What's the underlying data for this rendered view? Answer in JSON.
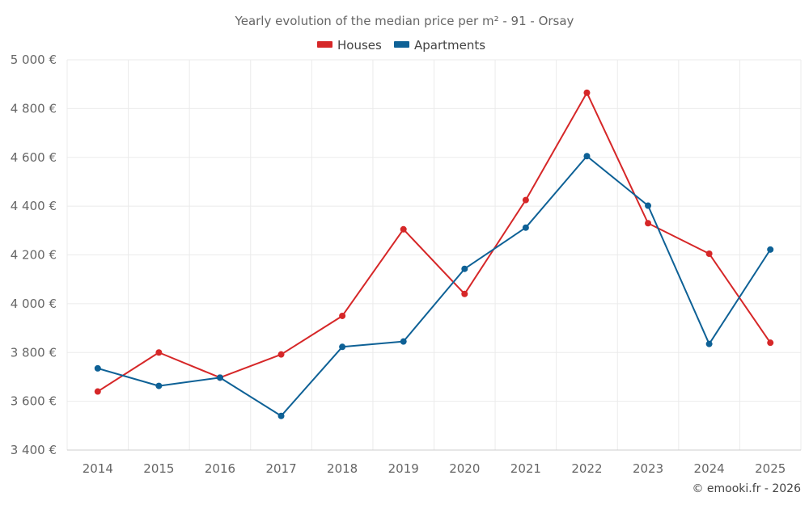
{
  "chart_data": {
    "type": "line",
    "title": "Yearly evolution of the median price per m² - 91 - Orsay",
    "categories": [
      "2014",
      "2015",
      "2016",
      "2017",
      "2018",
      "2019",
      "2020",
      "2021",
      "2022",
      "2023",
      "2024",
      "2025"
    ],
    "series": [
      {
        "name": "Houses",
        "color": "#d62728",
        "values": [
          3640,
          3800,
          3697,
          3792,
          3950,
          4305,
          4040,
          4425,
          4865,
          4330,
          4205,
          3840
        ]
      },
      {
        "name": "Apartments",
        "color": "#0e6196",
        "values": [
          3735,
          3663,
          3697,
          3540,
          3823,
          3845,
          4143,
          4312,
          4605,
          4402,
          3835,
          4222
        ]
      }
    ],
    "ylim": [
      3400,
      5000
    ],
    "yticks": [
      3400,
      3600,
      3800,
      4000,
      4200,
      4400,
      4600,
      4800,
      5000
    ],
    "ytick_labels": [
      "3 400 €",
      "3 600 €",
      "3 800 €",
      "4 000 €",
      "4 200 €",
      "4 400 €",
      "4 600 €",
      "4 800 €",
      "5 000 €"
    ],
    "xlabel": "",
    "ylabel": "",
    "legend_position": "top-center",
    "grid": true
  },
  "credit": "© emooki.fr - 2026"
}
